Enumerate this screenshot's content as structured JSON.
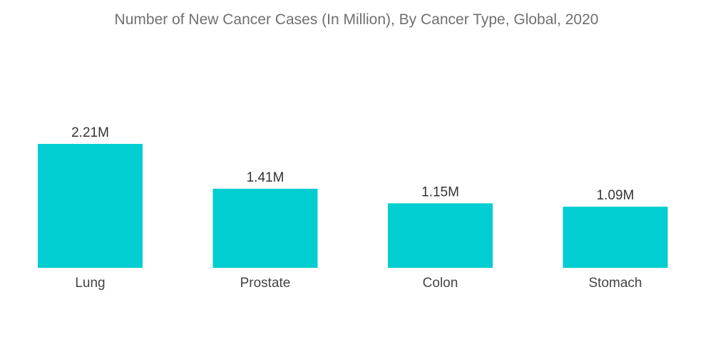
{
  "chart_data": {
    "type": "bar",
    "title": "Number of New Cancer Cases (In Million), By Cancer Type, Global, 2020",
    "categories": [
      "Lung",
      "Prostate",
      "Colon",
      "Stomach"
    ],
    "values": [
      2.21,
      1.41,
      1.15,
      1.09
    ],
    "value_labels": [
      "2.21M",
      "1.41M",
      "1.15M",
      "1.09M"
    ],
    "xlabel": "",
    "ylabel": "",
    "ylim": [
      0,
      2.21
    ],
    "grid": false,
    "legend": "none",
    "bar_color": "#00CED1"
  }
}
